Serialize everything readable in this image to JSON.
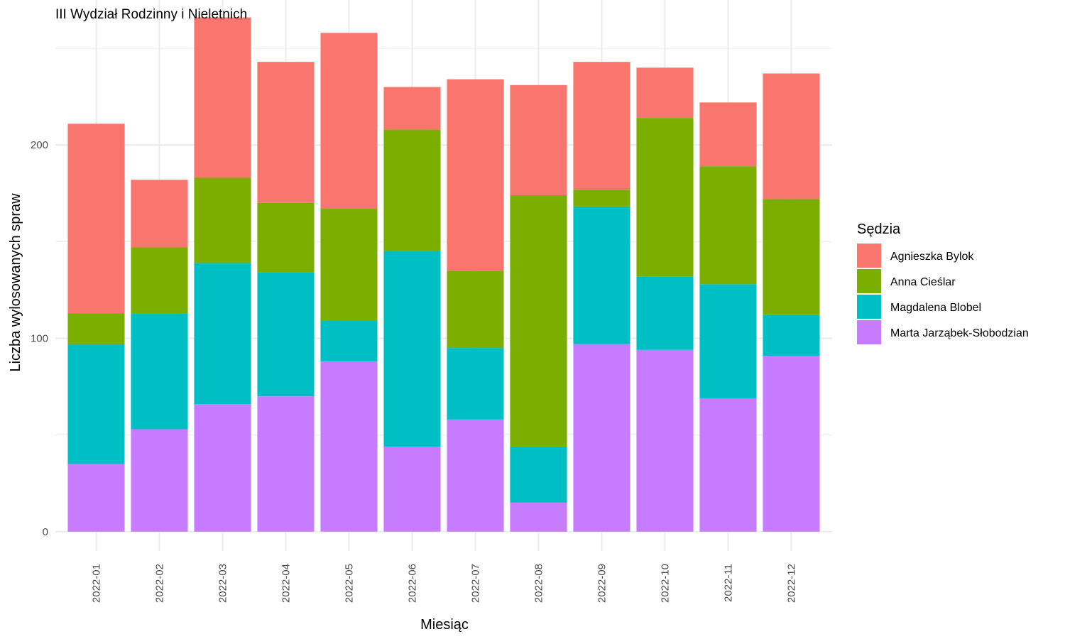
{
  "chart_data": {
    "type": "bar",
    "stacked": true,
    "title": "III Wydział Rodzinny i Nieletnich",
    "xlabel": "Miesiąc",
    "ylabel": "Liczba wylosowanych spraw",
    "ylim": [
      -10,
      275
    ],
    "yticks": [
      0,
      100,
      200
    ],
    "grid": true,
    "legend_position": "right",
    "legend_title": "Sędzia",
    "categories": [
      "2022-01",
      "2022-02",
      "2022-03",
      "2022-04",
      "2022-05",
      "2022-06",
      "2022-07",
      "2022-08",
      "2022-09",
      "2022-10",
      "2022-11",
      "2022-12"
    ],
    "series": [
      {
        "name": "Marta Jarząbek-Słobodzian",
        "color": "#C77CFF",
        "values": [
          35,
          53,
          66,
          70,
          88,
          44,
          58,
          15,
          97,
          94,
          69,
          91
        ]
      },
      {
        "name": "Magdalena Blobel",
        "color": "#00BFC4",
        "values": [
          62,
          60,
          73,
          64,
          21,
          101,
          37,
          29,
          71,
          38,
          59,
          21
        ]
      },
      {
        "name": "Anna Cieślar",
        "color": "#7CAE00",
        "values": [
          16,
          34,
          44,
          36,
          58,
          63,
          40,
          130,
          9,
          82,
          61,
          60
        ]
      },
      {
        "name": "Agnieszka Bylok",
        "color": "#F8766D",
        "values": [
          98,
          35,
          83,
          73,
          91,
          22,
          99,
          57,
          66,
          26,
          33,
          65
        ]
      }
    ],
    "legend_order": [
      "Agnieszka Bylok",
      "Anna Cieślar",
      "Magdalena Blobel",
      "Marta Jarząbek-Słobodzian"
    ]
  }
}
